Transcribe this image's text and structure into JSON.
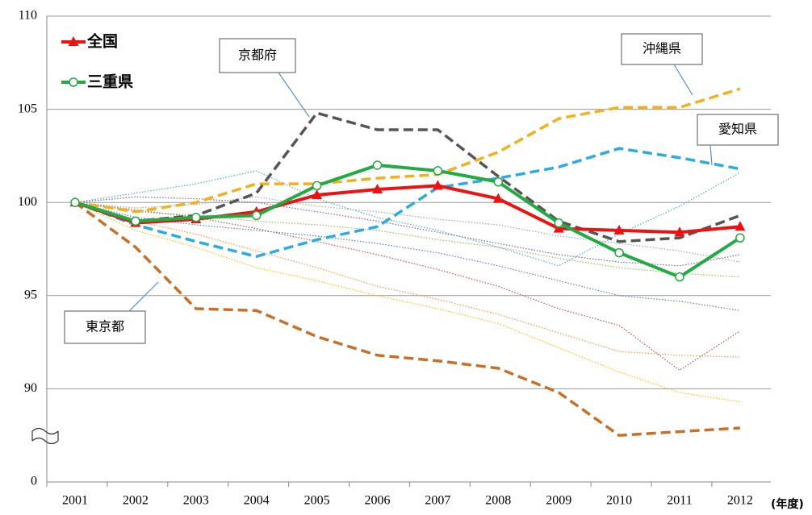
{
  "chart_data": {
    "type": "line",
    "categories": [
      "2001",
      "2002",
      "2003",
      "2004",
      "2005",
      "2006",
      "2007",
      "2008",
      "2009",
      "2010",
      "2011",
      "2012"
    ],
    "x_label": "(年度)",
    "ylim": [
      0,
      110
    ],
    "y_break": 85,
    "yticks": [
      0,
      90,
      95,
      100,
      105,
      110
    ],
    "grid": true,
    "series": [
      {
        "color": "#9bbb59",
        "style": "dotted",
        "values": [
          100,
          99.5,
          99.3,
          99.0,
          98.8,
          98.5,
          98.0,
          97.6,
          97.0,
          96.5,
          96.2,
          96.0
        ]
      },
      {
        "color": "#4f81bd",
        "style": "dotted",
        "values": [
          100,
          99.2,
          98.8,
          98.5,
          98.2,
          97.8,
          97.3,
          96.6,
          95.8,
          95.0,
          94.7,
          94.2
        ]
      },
      {
        "color": "#f79646",
        "style": "dotted",
        "values": [
          100,
          99.0,
          98.3,
          97.4,
          96.5,
          95.5,
          94.8,
          94.0,
          93.0,
          92.0,
          91.8,
          91.7
        ]
      },
      {
        "color": "#c0504d",
        "style": "dotted",
        "values": [
          100,
          99.6,
          99.2,
          98.6,
          97.9,
          97.2,
          96.4,
          95.5,
          94.3,
          93.4,
          91.0,
          93.1
        ]
      },
      {
        "color": "#8064a2",
        "style": "dotted",
        "values": [
          100,
          100.3,
          100.2,
          100.0,
          99.5,
          99.0,
          98.4,
          97.8,
          97.2,
          96.8,
          96.6,
          97.2
        ]
      },
      {
        "color": "#4bacc6",
        "style": "dotted",
        "values": [
          100,
          100.5,
          101.0,
          101.7,
          100.2,
          99.2,
          98.5,
          97.6,
          96.6,
          98.3,
          99.8,
          101.6
        ]
      },
      {
        "color": "#a5a5a5",
        "style": "dotted",
        "values": [
          100,
          99.7,
          99.9,
          100.3,
          99.8,
          99.5,
          99.1,
          98.8,
          98.2,
          97.8,
          97.4,
          96.8
        ]
      },
      {
        "color": "#ffc000",
        "style": "dotted",
        "values": [
          100,
          98.5,
          97.6,
          96.5,
          95.8,
          95.0,
          94.3,
          93.5,
          92.2,
          90.9,
          89.8,
          89.3
        ]
      },
      {
        "name": "東京都",
        "color": "#c8702a",
        "style": "dashed",
        "legend": false,
        "values": [
          100,
          97.6,
          94.3,
          94.2,
          92.8,
          91.8,
          91.5,
          91.1,
          89.8,
          87.5,
          87.7,
          87.9
        ]
      },
      {
        "name": "愛知県",
        "color": "#2eaae1",
        "style": "dashed",
        "legend": false,
        "values": [
          100,
          98.8,
          97.9,
          97.1,
          98.0,
          98.7,
          100.8,
          101.3,
          101.9,
          102.9,
          102.4,
          101.8
        ]
      },
      {
        "name": "沖縄県",
        "color": "#f2b01e",
        "style": "dashed",
        "legend": false,
        "values": [
          100,
          99.5,
          100.0,
          101.0,
          101.0,
          101.3,
          101.5,
          102.7,
          104.5,
          105.1,
          105.1,
          106.1
        ]
      },
      {
        "name": "京都府",
        "color": "#555555",
        "style": "dashed",
        "legend": false,
        "values": [
          100,
          99.0,
          99.3,
          100.5,
          104.8,
          103.9,
          103.9,
          101.4,
          99.0,
          97.9,
          98.1,
          99.3
        ]
      },
      {
        "name": "全国",
        "color": "#ee1111",
        "style": "solid",
        "marker": "triangle",
        "legend": true,
        "values": [
          100,
          98.9,
          99.1,
          99.5,
          100.4,
          100.7,
          100.9,
          100.2,
          98.6,
          98.5,
          98.4,
          98.7
        ]
      },
      {
        "name": "三重県",
        "color": "#22aa44",
        "style": "solid",
        "marker": "circle",
        "legend": true,
        "values": [
          100,
          99.0,
          99.2,
          99.3,
          100.9,
          102.0,
          101.7,
          101.1,
          98.9,
          97.3,
          96.0,
          98.1
        ]
      }
    ]
  }
}
